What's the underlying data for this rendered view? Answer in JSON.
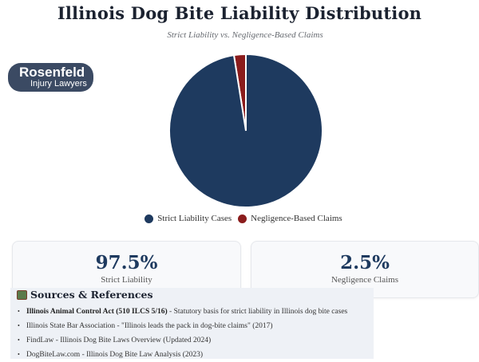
{
  "header": {
    "title": "Illinois Dog Bite Liability Distribution",
    "subtitle": "Strict Liability vs. Negligence-Based Claims"
  },
  "logo": {
    "brand": "Rosenfeld",
    "tagline": "Injury Lawyers",
    "bg_color": "#3b4a63"
  },
  "chart_data": {
    "type": "pie",
    "title": "Illinois Dog Bite Liability Distribution",
    "subtitle": "Strict Liability vs. Negligence-Based Claims",
    "categories": [
      "Strict Liability Cases",
      "Negligence-Based Claims"
    ],
    "values": [
      97.5,
      2.5
    ],
    "colors": [
      "#1e3a5f",
      "#8b1c1c"
    ],
    "legend_position": "bottom"
  },
  "legend": [
    {
      "label": "Strict Liability Cases",
      "color": "#1e3a5f"
    },
    {
      "label": "Negligence-Based Claims",
      "color": "#8b1c1c"
    }
  ],
  "stats": [
    {
      "value": "97.5%",
      "label": "Strict Liability"
    },
    {
      "value": "2.5%",
      "label": "Negligence Claims"
    }
  ],
  "sources": {
    "heading": "Sources & References",
    "items": [
      {
        "name": "Illinois Animal Control Act (510 ILCS 5/16)",
        "desc": " - Statutory basis for strict liability in Illinois dog bite cases"
      },
      {
        "name": "Illinois State Bar Association",
        "desc": " - \"Illinois leads the pack in dog-bite claims\" (2017)"
      },
      {
        "name": "FindLaw",
        "desc": " - Illinois Dog Bite Laws Overview (Updated 2024)"
      },
      {
        "name": "DogBiteLaw.com",
        "desc": " - Illinois Dog Bite Law Analysis (2023)"
      }
    ]
  }
}
